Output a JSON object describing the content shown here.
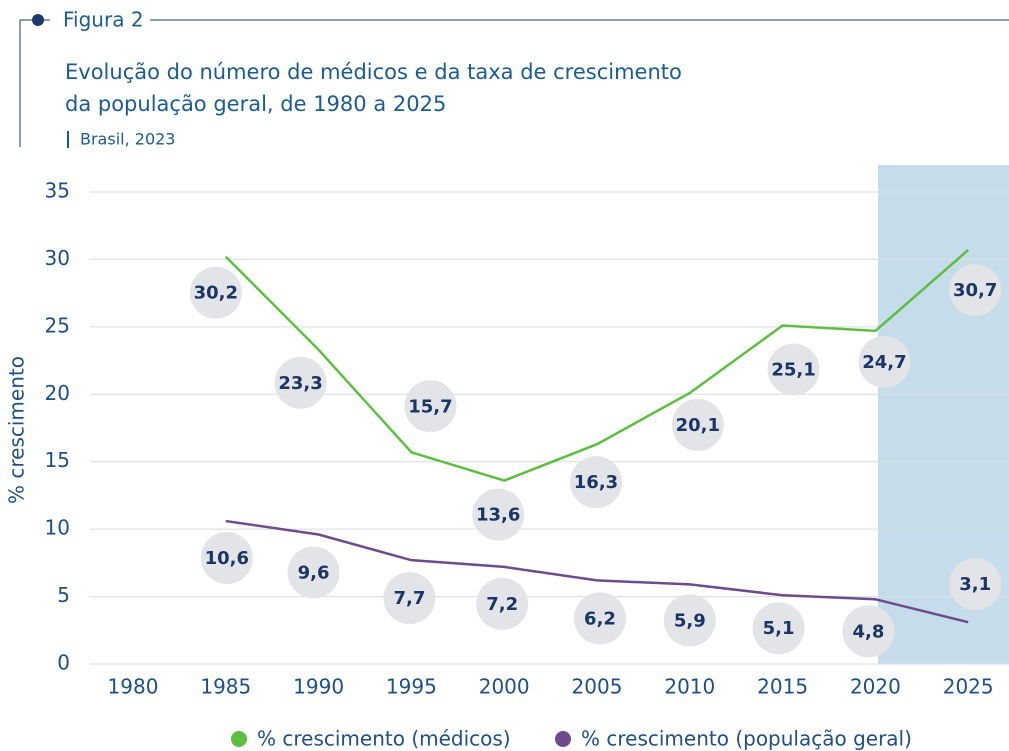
{
  "chart_data": {
    "type": "line",
    "figure_label": "Figura 2",
    "title": "Evolução do número de médicos e da taxa de crescimento da população geral, de 1980 a 2025",
    "subtitle": "Brasil, 2023",
    "y_label": "% crescimento",
    "categories": [
      "1980",
      "1985",
      "1990",
      "1995",
      "2000",
      "2005",
      "2010",
      "2015",
      "2020",
      "2025"
    ],
    "series": [
      {
        "name": "% crescimento (médicos)",
        "color": "#5cbf3f",
        "values": [
          null,
          30.2,
          23.3,
          15.7,
          13.6,
          16.3,
          20.1,
          25.1,
          24.7,
          30.7
        ],
        "value_labels": [
          null,
          "30,2",
          "23,3",
          "15,7",
          "13,6",
          "16,3",
          "20,1",
          "25,1",
          "24,7",
          "30,7"
        ]
      },
      {
        "name": "% crescimento (população geral)",
        "color": "#6e4a8e",
        "values": [
          null,
          10.6,
          9.6,
          7.7,
          7.2,
          6.2,
          5.9,
          5.1,
          4.8,
          3.1
        ],
        "value_labels": [
          null,
          "10,6",
          "9,6",
          "7,7",
          "7,2",
          "6,2",
          "5,9",
          "5,1",
          "4,8",
          "3,1"
        ]
      }
    ],
    "ylim": [
      0,
      35
    ],
    "yticks": [
      0,
      5,
      10,
      15,
      20,
      25,
      30,
      35
    ],
    "grid": true,
    "legend": "bottom"
  }
}
